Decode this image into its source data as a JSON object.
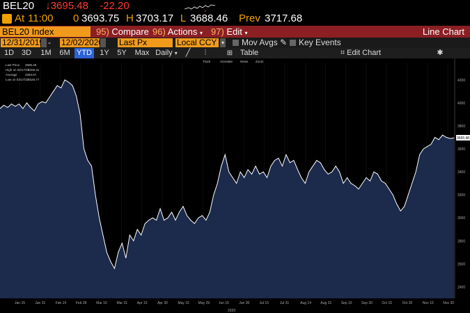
{
  "quote": {
    "symbol": "BEL20",
    "price": "↓3695.48",
    "change": "-22.20"
  },
  "at": {
    "label": "At",
    "time": "11:00",
    "o_label": "0",
    "open": "3693.75",
    "h_label": "H",
    "high": "3703.17",
    "l_label": "L",
    "low": "3688.46",
    "prev_label": "Prev",
    "prev": "3717.68"
  },
  "cmd": {
    "ticker": "BEL20 Index",
    "compare_num": "95)",
    "compare": "Compare",
    "actions_num": "96)",
    "actions": "Actions",
    "edit_num": "97)",
    "edit": "Edit",
    "title": "Line Chart"
  },
  "range": {
    "start": "12/31/2019",
    "end": "12/02/2020",
    "field": "Last Px",
    "ccy": "Local CCY",
    "mov": "Mov Avgs",
    "events": "Key Events"
  },
  "periods": [
    "1D",
    "3D",
    "1M",
    "6M",
    "YTD",
    "1Y",
    "5Y",
    "Max"
  ],
  "selected_period": "YTD",
  "freq": "Daily",
  "table_label": "Table",
  "edit_chart": "Edit Chart",
  "tools": [
    "Track",
    "Annotate",
    "News",
    "Zoom"
  ],
  "legend": {
    "last_label": "Last Price",
    "last": "3695.48",
    "high_label": "High on 02/17/20",
    "high": "4208.31",
    "avg_label": "Average",
    "avg": "3393.87",
    "low_label": "Low on 03/17/20",
    "low": "2528.77"
  },
  "price_tag": "3695.48",
  "colors": {
    "area": "#1c2a4c",
    "line": "#ffffff",
    "accent": "#f09a1c",
    "bar": "#8b1f24"
  },
  "chart_data": {
    "type": "area",
    "ylim": [
      2300,
      4350
    ],
    "yticks": [
      2400,
      2600,
      2800,
      3000,
      3200,
      3400,
      3600,
      3800,
      4000,
      4200
    ],
    "xlabels": [
      "Jan 15",
      "Jan 31",
      "Feb 14",
      "Feb 28",
      "Mar 16",
      "Mar 31",
      "Apr 15",
      "Apr 30",
      "May 15",
      "May 29",
      "Jun 15",
      "Jun 30",
      "Jul 15",
      "Jul 31",
      "Aug 14",
      "Aug 31",
      "Sep 15",
      "Sep 30",
      "Oct 15",
      "Oct 30",
      "Nov 16",
      "Nov 30"
    ],
    "xyear": "2020",
    "values": [
      3950,
      3980,
      3960,
      3990,
      3970,
      3990,
      3950,
      4000,
      3960,
      3930,
      3990,
      4010,
      4000,
      4050,
      4100,
      4150,
      4130,
      4200,
      4180,
      4150,
      4060,
      3900,
      3600,
      3500,
      3450,
      3200,
      3000,
      2850,
      2700,
      2620,
      2560,
      2700,
      2780,
      2650,
      2850,
      2800,
      2900,
      2850,
      2950,
      2980,
      3000,
      2980,
      3080,
      2980,
      3000,
      3050,
      2980,
      3050,
      3100,
      3020,
      2980,
      2950,
      3000,
      3020,
      2980,
      3050,
      3200,
      3300,
      3450,
      3550,
      3400,
      3350,
      3300,
      3400,
      3350,
      3420,
      3380,
      3450,
      3380,
      3400,
      3350,
      3450,
      3500,
      3520,
      3450,
      3550,
      3480,
      3500,
      3420,
      3350,
      3300,
      3400,
      3450,
      3500,
      3480,
      3420,
      3380,
      3400,
      3450,
      3400,
      3300,
      3350,
      3300,
      3280,
      3250,
      3300,
      3350,
      3320,
      3400,
      3380,
      3320,
      3300,
      3250,
      3200,
      3120,
      3060,
      3100,
      3200,
      3300,
      3400,
      3550,
      3600,
      3620,
      3640,
      3700,
      3680,
      3720,
      3700,
      3690,
      3695
    ]
  }
}
